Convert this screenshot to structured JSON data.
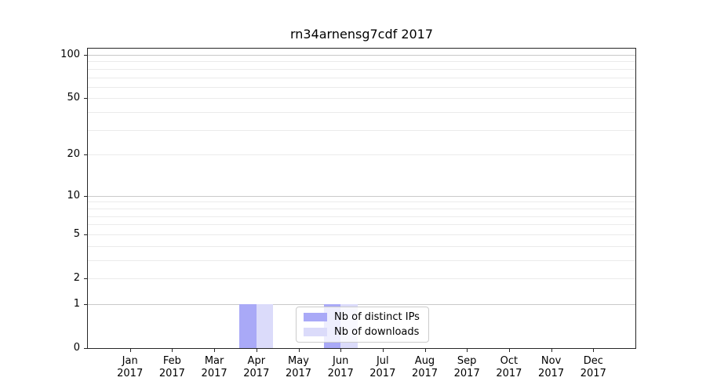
{
  "chart_data": {
    "type": "bar",
    "title": "rn34arnensg7cdf 2017",
    "categories": [
      "Jan",
      "Feb",
      "Mar",
      "Apr",
      "May",
      "Jun",
      "Jul",
      "Aug",
      "Sep",
      "Oct",
      "Nov",
      "Dec"
    ],
    "x_year": "2017",
    "series": [
      {
        "name": "Nb of distinct IPs",
        "color": "#a9a9f7",
        "values": [
          0,
          0,
          0,
          1,
          0,
          1,
          0,
          0,
          0,
          0,
          0,
          0
        ]
      },
      {
        "name": "Nb of downloads",
        "color": "#dbdbfa",
        "values": [
          0,
          0,
          0,
          1,
          0,
          1,
          0,
          0,
          0,
          0,
          0,
          0
        ]
      }
    ],
    "yscale": "log1p",
    "ylim": [
      0,
      100
    ],
    "y_ticks": [
      0,
      1,
      2,
      5,
      10,
      20,
      50,
      100
    ],
    "y_gridlines_major": [
      1,
      10,
      100
    ],
    "y_gridlines_minor": [
      2,
      3,
      4,
      5,
      6,
      7,
      8,
      9,
      20,
      30,
      40,
      50,
      60,
      70,
      80,
      90
    ],
    "grid": true,
    "legend_position": "lower center"
  },
  "colors": {
    "grid_minor": "#ebebeb",
    "grid_major": "#c9c9c9",
    "spine": "#262626",
    "text": "#000000",
    "legend_border": "#cccccc",
    "background": "#ffffff"
  }
}
